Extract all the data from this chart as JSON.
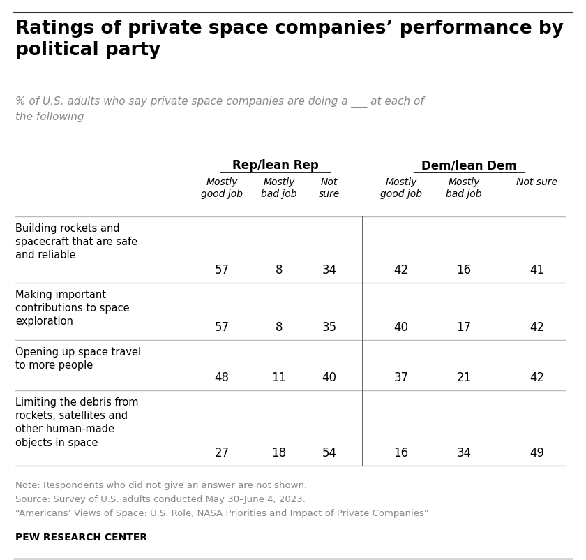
{
  "title": "Ratings of private space companies’ performance by\npolitical party",
  "subtitle": "% of U.S. adults who say private space companies are doing a ___ at each of\nthe following",
  "col_group1": "Rep/lean Rep",
  "col_group2": "Dem/lean Dem",
  "col_headers": [
    "Mostly\ngood job",
    "Mostly\nbad job",
    "Not\nsure",
    "Mostly\ngood job",
    "Mostly\nbad job",
    "Not sure"
  ],
  "rows": [
    {
      "label": "Building rockets and\nspacecraft that are safe\nand reliable",
      "values": [
        57,
        8,
        34,
        42,
        16,
        41
      ]
    },
    {
      "label": "Making important\ncontributions to space\nexploration",
      "values": [
        57,
        8,
        35,
        40,
        17,
        42
      ]
    },
    {
      "label": "Opening up space travel\nto more people",
      "values": [
        48,
        11,
        40,
        37,
        21,
        42
      ]
    },
    {
      "label": "Limiting the debris from\nrockets, satellites and\nother human-made\nobjects in space",
      "values": [
        27,
        18,
        54,
        16,
        34,
        49
      ]
    }
  ],
  "note_lines": [
    "Note: Respondents who did not give an answer are not shown.",
    "Source: Survey of U.S. adults conducted May 30–June 4, 2023.",
    "“Americans’ Views of Space: U.S. Role, NASA Priorities and Impact of Private Companies”"
  ],
  "footer": "PEW RESEARCH CENTER",
  "bg_color": "#ffffff",
  "text_color": "#000000",
  "note_color": "#888888",
  "divider_color": "#555555",
  "border_color": "#bbbbbb",
  "top_border_color": "#333333"
}
